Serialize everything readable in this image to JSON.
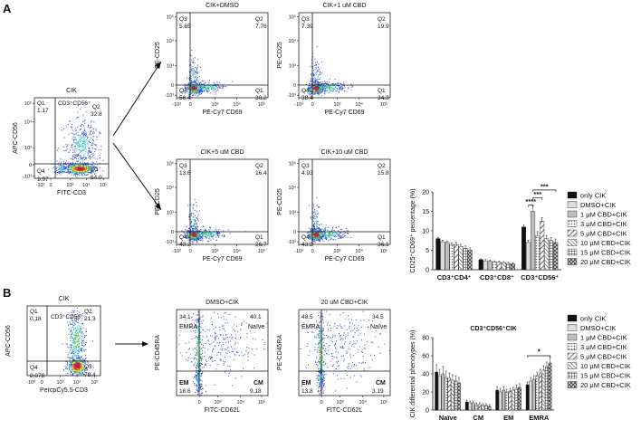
{
  "panel_labels": {
    "a": "A",
    "b": "B"
  },
  "a": {
    "cik": {
      "title": "CIK",
      "xlabel": "FITC-CD3",
      "ylabel": "APC-CD56",
      "gate_label_html": "CD3⁺CD56⁺",
      "quads": [
        {
          "name": "Q1",
          "value": "1.17"
        },
        {
          "name": "Q2",
          "value": "32.8"
        },
        {
          "name": "Q4",
          "value": "1.97"
        },
        {
          "name": "Q3",
          "value": "64.0"
        }
      ],
      "xticks": [
        "-10³",
        "0",
        "10³",
        "10⁴",
        "10⁵"
      ],
      "yticks": [
        "10⁵",
        "10⁴",
        "10³",
        "0",
        "-10³"
      ]
    },
    "subplots": [
      {
        "title": "CIK+DMSO",
        "xlabel": "PE-Cy7 CD69",
        "ylabel": "PE-CD25",
        "quads": [
          {
            "name": "Q3",
            "value": "5.65"
          },
          {
            "name": "Q2",
            "value": "7.76"
          },
          {
            "name": "Q4",
            "value": "56.4"
          },
          {
            "name": "Q1",
            "value": "30.2"
          }
        ]
      },
      {
        "title": "CIK+1 uM CBD",
        "xlabel": "PE-Cy7 CD69",
        "ylabel": "PE-CD25",
        "quads": [
          {
            "name": "Q3",
            "value": "7.39"
          },
          {
            "name": "Q2",
            "value": "19.9"
          },
          {
            "name": "Q4",
            "value": "38.4"
          },
          {
            "name": "Q1",
            "value": "34.3"
          }
        ]
      },
      {
        "title": "CIK+5 uM CBD",
        "xlabel": "PE-Cy7 CD69",
        "ylabel": "PE-CD25",
        "quads": [
          {
            "name": "Q3",
            "value": "13.6"
          },
          {
            "name": "Q2",
            "value": "16.4"
          },
          {
            "name": "Q4",
            "value": "43.2"
          },
          {
            "name": "Q1",
            "value": "26.7"
          }
        ]
      },
      {
        "title": "CIK+10 uM CBD",
        "xlabel": "PE-Cy7 CD69",
        "ylabel": "PE-CD25",
        "quads": [
          {
            "name": "Q3",
            "value": "4.93"
          },
          {
            "name": "Q2",
            "value": "15.8"
          },
          {
            "name": "Q4",
            "value": "43.2"
          },
          {
            "name": "Q1",
            "value": "36.1"
          }
        ]
      }
    ],
    "sub_xticks": [
      "-10³",
      "0",
      "10³",
      "10⁴",
      "10⁵"
    ],
    "sub_yticks": [
      "10⁵",
      "10⁴",
      "10³",
      "0",
      "-10³"
    ]
  },
  "b": {
    "cik": {
      "title": "CIK",
      "xlabel": "PercpCy5.5-CD3",
      "ylabel": "APC-CD56",
      "gate_label_html": "CD3⁺CD56⁺",
      "quads": [
        {
          "name": "Q1",
          "value": "0.18"
        },
        {
          "name": "Q2",
          "value": "21.3"
        },
        {
          "name": "Q4",
          "value": "0.078"
        },
        {
          "name": "Q3",
          "value": "78.4"
        }
      ]
    },
    "subplots": [
      {
        "title": "DMSO+CIK",
        "xlabel": "FITC-CD62L",
        "ylabel": "PE-CD45RA",
        "values": [
          "34.1",
          "40.1",
          "16.6",
          "9.18"
        ],
        "names": [
          "EMRA",
          "Naïve",
          "EM",
          "CM"
        ]
      },
      {
        "title": "20 uM CBD+CIK",
        "xlabel": "FITC-CD62L",
        "ylabel": "PE-CD45RA",
        "values": [
          "48.5",
          "34.5",
          "13.8",
          "3.19"
        ],
        "names": [
          "EMRA",
          "Naïve",
          "EM",
          "CM"
        ]
      }
    ]
  },
  "chart_data": [
    {
      "type": "bar",
      "title": "",
      "ylabel": "CD25⁺CD69⁺ percentage (%)",
      "categories": [
        "CD3⁺CD4⁺",
        "CD3⁺CD8⁺",
        "CD3⁺CD56⁺"
      ],
      "ylim": [
        0,
        20
      ],
      "yticks": [
        "0",
        "5",
        "10",
        "15",
        "20"
      ],
      "series": [
        {
          "name": "only CIK",
          "values": [
            8.0,
            2.6,
            11.0
          ],
          "errors": [
            0.3,
            0.2,
            0.5
          ]
        },
        {
          "name": "DMSO+CIK",
          "values": [
            7.2,
            2.3,
            7.0
          ],
          "errors": [
            0.4,
            0.3,
            0.6
          ]
        },
        {
          "name": "1 μM CBD+CIK",
          "values": [
            7.0,
            2.2,
            15.0
          ],
          "errors": [
            0.4,
            0.3,
            1.5
          ]
        },
        {
          "name": "3 μM CBD+CIK",
          "values": [
            6.4,
            2.0,
            8.8
          ],
          "errors": [
            0.5,
            0.3,
            1.0
          ]
        },
        {
          "name": "5 μM CBD+CIK",
          "values": [
            6.5,
            1.9,
            12.5
          ],
          "errors": [
            0.5,
            0.3,
            0.9
          ]
        },
        {
          "name": "10 μM CBD+CIK",
          "values": [
            6.0,
            1.8,
            8.0
          ],
          "errors": [
            0.5,
            0.3,
            0.8
          ]
        },
        {
          "name": "15 μM CBD+CIK",
          "values": [
            5.5,
            1.6,
            7.5
          ],
          "errors": [
            0.6,
            0.3,
            0.8
          ]
        },
        {
          "name": "20 μM CBD+CIK",
          "values": [
            5.0,
            1.5,
            7.0
          ],
          "errors": [
            0.6,
            0.3,
            0.9
          ]
        }
      ],
      "significance": [
        "****",
        "***",
        "***"
      ]
    },
    {
      "type": "bar",
      "title": "CD3⁺CD56⁺CIK",
      "ylabel": "CIK differential phenotypes (%)",
      "categories": [
        "Naïve",
        "CM",
        "EM",
        "EMRA"
      ],
      "ylim": [
        0,
        80
      ],
      "yticks": [
        "0",
        "20",
        "40",
        "60",
        "80"
      ],
      "series": [
        {
          "name": "only CIK",
          "values": [
            42,
            9,
            22,
            28
          ],
          "errors": [
            8,
            2,
            4,
            3
          ]
        },
        {
          "name": "DMSO+CIK",
          "values": [
            38,
            8,
            20,
            32
          ],
          "errors": [
            7,
            2,
            4,
            4
          ]
        },
        {
          "name": "1 μM CBD+CIK",
          "values": [
            40,
            8,
            22,
            34
          ],
          "errors": [
            8,
            2,
            4,
            4
          ]
        },
        {
          "name": "3 μM CBD+CIK",
          "values": [
            36,
            6,
            20,
            38
          ],
          "errors": [
            7,
            2,
            3,
            4
          ]
        },
        {
          "name": "5 μM CBD+CIK",
          "values": [
            35,
            6,
            21,
            40
          ],
          "errors": [
            6,
            2,
            3,
            5
          ]
        },
        {
          "name": "10 μM CBD+CIK",
          "values": [
            33,
            5,
            22,
            44
          ],
          "errors": [
            6,
            2,
            3,
            5
          ]
        },
        {
          "name": "15 μM CBD+CIK",
          "values": [
            32,
            5,
            24,
            48
          ],
          "errors": [
            6,
            2,
            4,
            5
          ]
        },
        {
          "name": "20 μM CBD+CIK",
          "values": [
            30,
            4,
            25,
            52
          ],
          "errors": [
            6,
            2,
            4,
            6
          ]
        }
      ],
      "significance": [
        "*"
      ]
    }
  ],
  "palette": {
    "blue": "#2f4cc9",
    "cyan": "#37c4d0",
    "green": "#3dbf45",
    "yellow": "#e6d928",
    "orange": "#ef8a1f",
    "red": "#d02020"
  }
}
